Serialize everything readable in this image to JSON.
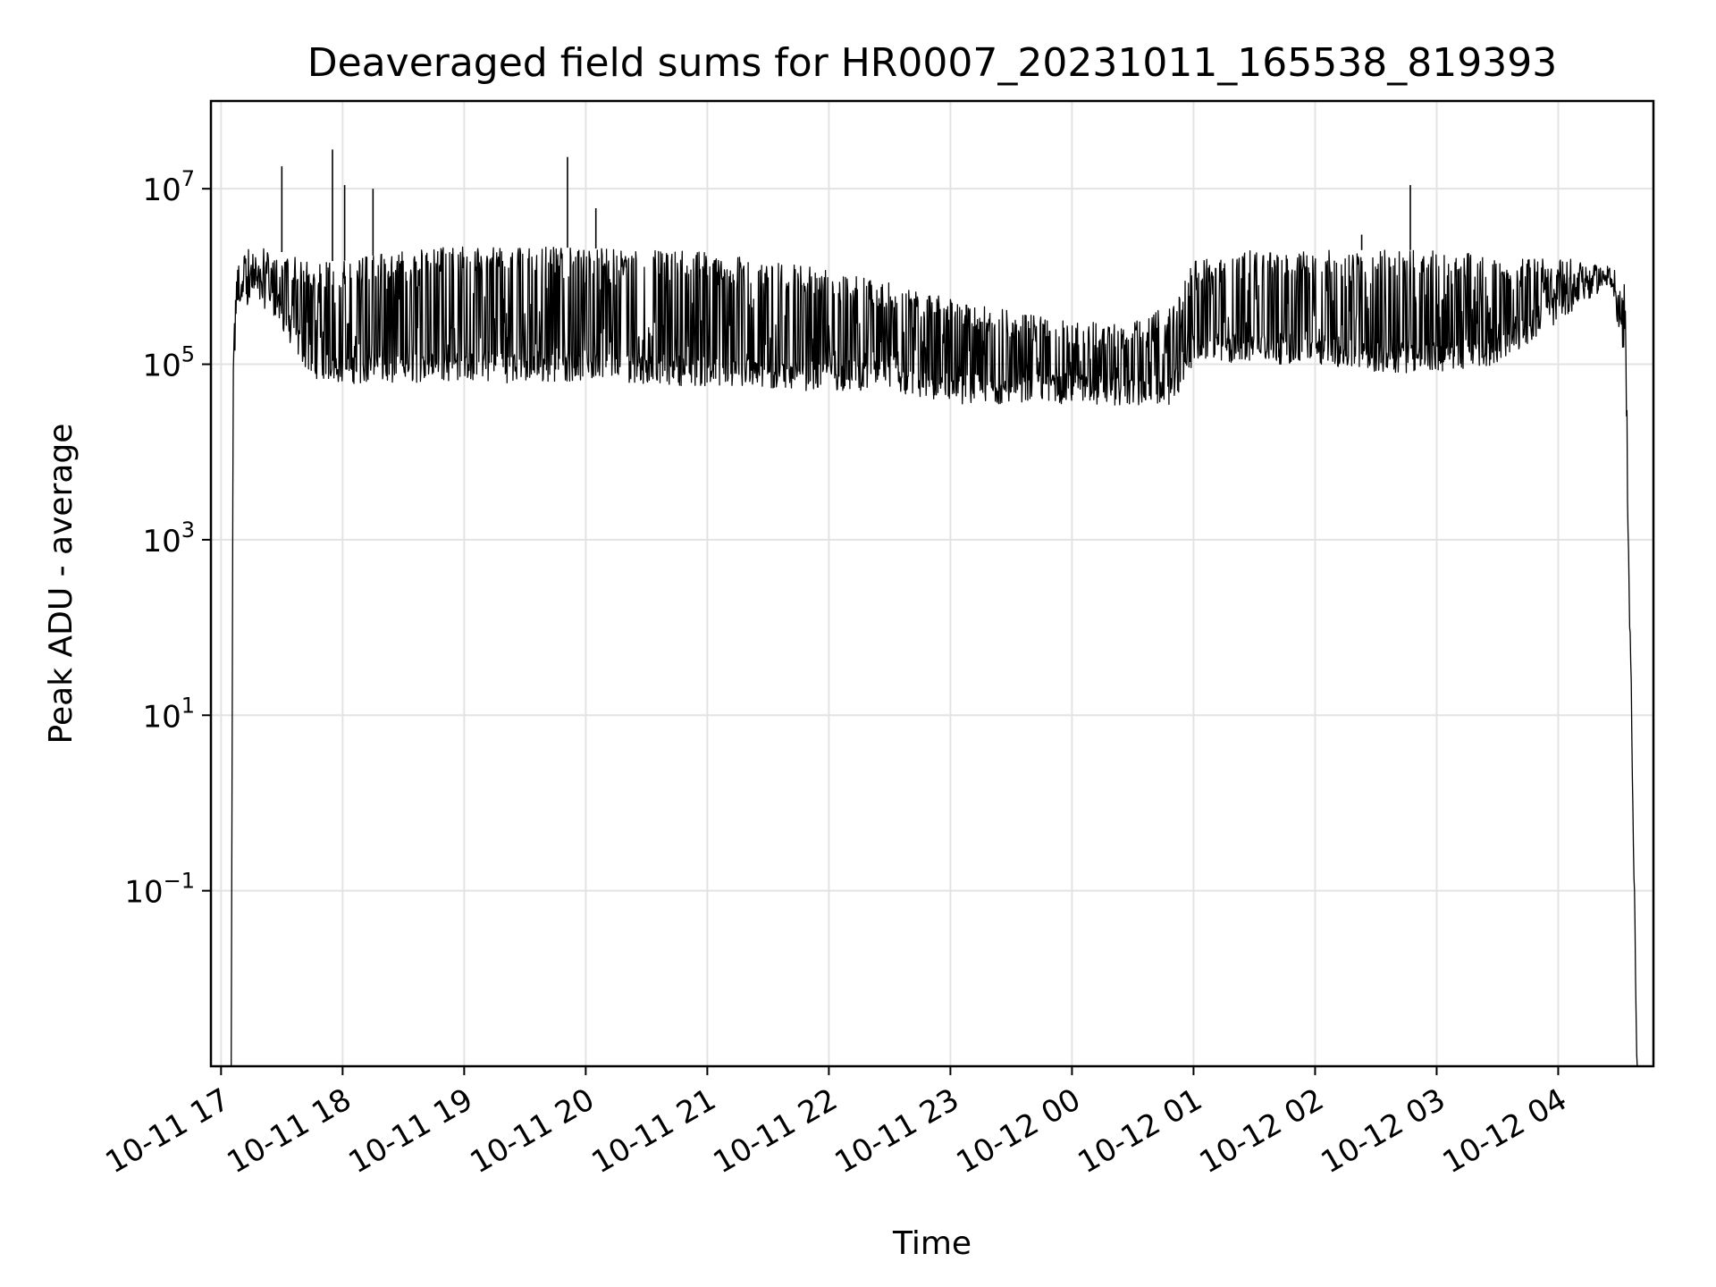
{
  "chart_data": {
    "type": "line",
    "title": "Deaveraged field sums for HR0007_20231011_165538_819393",
    "xlabel": "Time",
    "ylabel": "Peak ADU - average",
    "y_scale": "log",
    "ylim": [
      0.001,
      100000000
    ],
    "xlim": [
      "2023-10-11 16:55",
      "2023-10-12 04:47"
    ],
    "grid": true,
    "line_color": "#000000",
    "x_ticks": [
      {
        "label": "10-11 17",
        "time": "2023-10-11 17:00"
      },
      {
        "label": "10-11 18",
        "time": "2023-10-11 18:00"
      },
      {
        "label": "10-11 19",
        "time": "2023-10-11 19:00"
      },
      {
        "label": "10-11 20",
        "time": "2023-10-11 20:00"
      },
      {
        "label": "10-11 21",
        "time": "2023-10-11 21:00"
      },
      {
        "label": "10-11 22",
        "time": "2023-10-11 22:00"
      },
      {
        "label": "10-11 23",
        "time": "2023-10-11 23:00"
      },
      {
        "label": "10-12 00",
        "time": "2023-10-12 00:00"
      },
      {
        "label": "10-12 01",
        "time": "2023-10-12 01:00"
      },
      {
        "label": "10-12 02",
        "time": "2023-10-12 02:00"
      },
      {
        "label": "10-12 03",
        "time": "2023-10-12 03:00"
      },
      {
        "label": "10-12 04",
        "time": "2023-10-12 04:00"
      }
    ],
    "y_ticks": [
      {
        "base": "10",
        "exp": "7",
        "value": 10000000
      },
      {
        "base": "10",
        "exp": "5",
        "value": 100000
      },
      {
        "base": "10",
        "exp": "3",
        "value": 1000
      },
      {
        "base": "10",
        "exp": "1",
        "value": 10
      },
      {
        "base": "10",
        "exp": "−1",
        "value": 0.1
      }
    ],
    "series": [
      {
        "name": "",
        "envelope": [
          {
            "x": "2023-10-11 17:05",
            "low": 0.001,
            "high": 0.001
          },
          {
            "x": "2023-10-11 17:06",
            "low": 40000,
            "high": 200000
          },
          {
            "x": "2023-10-11 17:08",
            "low": 400000,
            "high": 1500000
          },
          {
            "x": "2023-10-11 17:15",
            "low": 500000,
            "high": 2200000
          },
          {
            "x": "2023-10-11 17:25",
            "low": 400000,
            "high": 2000000
          },
          {
            "x": "2023-10-11 17:35",
            "low": 150000,
            "high": 1800000
          },
          {
            "x": "2023-10-11 17:45",
            "low": 70000,
            "high": 1500000
          },
          {
            "x": "2023-10-11 18:00",
            "low": 60000,
            "high": 1500000
          },
          {
            "x": "2023-10-11 18:30",
            "low": 60000,
            "high": 2000000
          },
          {
            "x": "2023-10-11 19:00",
            "low": 65000,
            "high": 2200000
          },
          {
            "x": "2023-10-11 19:30",
            "low": 60000,
            "high": 2200000
          },
          {
            "x": "2023-10-11 20:00",
            "low": 65000,
            "high": 2100000
          },
          {
            "x": "2023-10-11 20:30",
            "low": 60000,
            "high": 2000000
          },
          {
            "x": "2023-10-11 21:00",
            "low": 55000,
            "high": 1900000
          },
          {
            "x": "2023-10-11 21:30",
            "low": 50000,
            "high": 1500000
          },
          {
            "x": "2023-10-11 22:00",
            "low": 50000,
            "high": 1200000
          },
          {
            "x": "2023-10-11 22:25",
            "low": 50000,
            "high": 900000
          },
          {
            "x": "2023-10-11 22:55",
            "low": 35000,
            "high": 600000
          },
          {
            "x": "2023-10-11 23:30",
            "low": 35000,
            "high": 400000
          },
          {
            "x": "2023-10-12 00:00",
            "low": 35000,
            "high": 300000
          },
          {
            "x": "2023-10-12 00:30",
            "low": 33000,
            "high": 300000
          },
          {
            "x": "2023-10-12 00:50",
            "low": 35000,
            "high": 500000
          },
          {
            "x": "2023-10-12 01:00",
            "low": 100000,
            "high": 1500000
          },
          {
            "x": "2023-10-12 01:30",
            "low": 100000,
            "high": 2000000
          },
          {
            "x": "2023-10-12 02:00",
            "low": 100000,
            "high": 2000000
          },
          {
            "x": "2023-10-12 02:30",
            "low": 80000,
            "high": 2000000
          },
          {
            "x": "2023-10-12 03:00",
            "low": 80000,
            "high": 2000000
          },
          {
            "x": "2023-10-12 03:30",
            "low": 100000,
            "high": 1800000
          },
          {
            "x": "2023-10-12 04:00",
            "low": 300000,
            "high": 1600000
          },
          {
            "x": "2023-10-12 04:25",
            "low": 800000,
            "high": 1500000
          },
          {
            "x": "2023-10-12 04:33",
            "low": 100000,
            "high": 1000000
          },
          {
            "x": "2023-10-12 04:39",
            "low": 0.001,
            "high": 0.001
          }
        ],
        "spikes": [
          {
            "x": "2023-10-11 17:30",
            "y": 18000000
          },
          {
            "x": "2023-10-11 17:55",
            "y": 28000000
          },
          {
            "x": "2023-10-11 18:01",
            "y": 11000000
          },
          {
            "x": "2023-10-11 18:15",
            "y": 10000000
          },
          {
            "x": "2023-10-11 19:51",
            "y": 23000000
          },
          {
            "x": "2023-10-11 20:05",
            "y": 6000000
          },
          {
            "x": "2023-10-12 02:47",
            "y": 11000000
          },
          {
            "x": "2023-10-12 02:23",
            "y": 3000000
          }
        ]
      }
    ]
  }
}
